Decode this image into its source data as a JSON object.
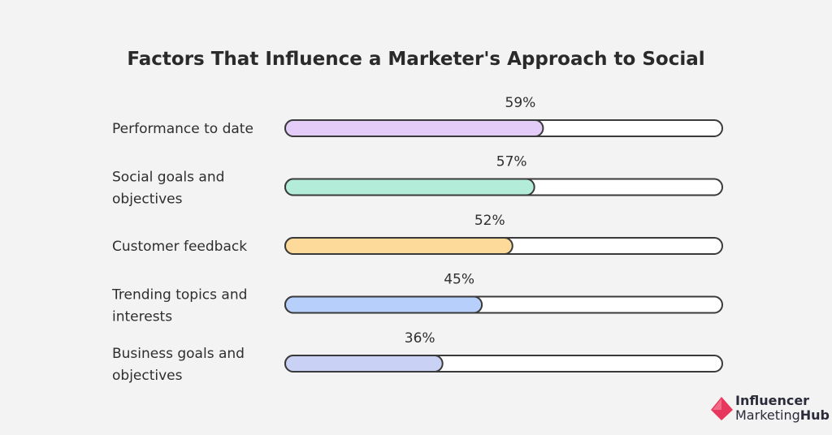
{
  "chart_data": {
    "type": "bar",
    "orientation": "horizontal",
    "title": "Factors That Influence a Marketer's Approach to Social",
    "categories": [
      [
        "Performance to date"
      ],
      [
        "Social goals and",
        "objectives"
      ],
      [
        "Customer feedback"
      ],
      [
        "Trending topics and",
        "interests"
      ],
      [
        "Business goals and",
        "objectives"
      ]
    ],
    "values": [
      59,
      57,
      52,
      45,
      36
    ],
    "value_labels": [
      "59%",
      "57%",
      "52%",
      "45%",
      "36%"
    ],
    "xlim": [
      0,
      100
    ],
    "unit": "%",
    "colors": [
      "#e3cdf8",
      "#b3ecd9",
      "#fdd99a",
      "#b7cffb",
      "#c9d2f5"
    ],
    "grid": false,
    "legend": "none"
  },
  "brand": {
    "line1": "Influencer",
    "line2a": "Marketing",
    "line2b": "Hub",
    "logo_color": "#e8375c"
  }
}
